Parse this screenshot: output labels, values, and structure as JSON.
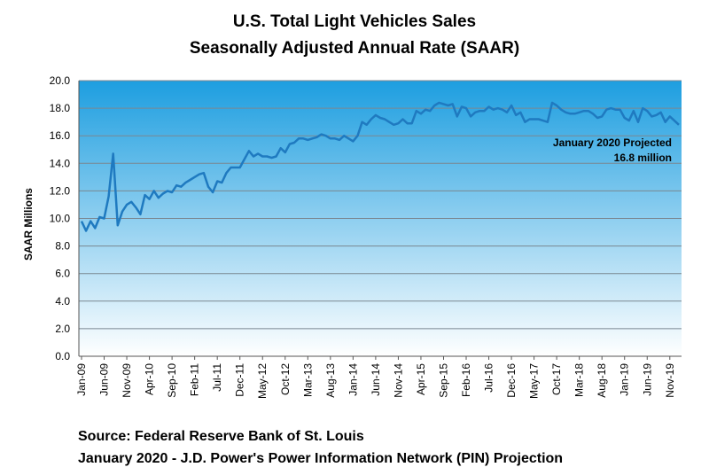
{
  "chart_data": {
    "type": "line",
    "title": "U.S. Total Light Vehicles Sales",
    "subtitle": "Seasonally Adjusted Annual Rate (SAAR)",
    "ylabel": "SAAR Millions",
    "xlabel": "",
    "ylim": [
      0,
      20
    ],
    "yticks": [
      "0.0",
      "2.0",
      "4.0",
      "6.0",
      "8.0",
      "10.0",
      "12.0",
      "14.0",
      "16.0",
      "18.0",
      "20.0"
    ],
    "xtick_labels": [
      "Jan-09",
      "Jun-09",
      "Nov-09",
      "Apr-10",
      "Sep-10",
      "Feb-11",
      "Jul-11",
      "Dec-11",
      "May-12",
      "Oct-12",
      "Mar-13",
      "Aug-13",
      "Jan-14",
      "Jun-14",
      "Nov-14",
      "Apr-15",
      "Sep-15",
      "Feb-16",
      "Jul-16",
      "Dec-16",
      "May-17",
      "Oct-17",
      "Mar-18",
      "Aug-18",
      "Jan-19",
      "Jun-19",
      "Nov-19"
    ],
    "x_start": "Jan-09",
    "x_end": "Jan-20",
    "grid": true,
    "line_color": "#1f7ac0",
    "background_top_color": "#1d9ee0",
    "background_bottom_color": "#ffffff",
    "series": [
      {
        "values": [
          9.8,
          9.1,
          9.8,
          9.3,
          10.1,
          10.0,
          11.6,
          14.7,
          9.5,
          10.5,
          11.0,
          11.2,
          10.8,
          10.3,
          11.7,
          11.4,
          12.0,
          11.5,
          11.8,
          12.0,
          11.9,
          12.4,
          12.3,
          12.6,
          12.8,
          13.0,
          13.2,
          13.3,
          12.3,
          11.9,
          12.7,
          12.6,
          13.3,
          13.7,
          13.7,
          13.7,
          14.3,
          14.9,
          14.5,
          14.7,
          14.5,
          14.5,
          14.4,
          14.5,
          15.1,
          14.8,
          15.4,
          15.5,
          15.8,
          15.8,
          15.7,
          15.8,
          15.9,
          16.1,
          16.0,
          15.8,
          15.8,
          15.7,
          16.0,
          15.8,
          15.6,
          16.0,
          17.0,
          16.8,
          17.2,
          17.5,
          17.3,
          17.2,
          17.0,
          16.8,
          16.9,
          17.2,
          16.9,
          16.9,
          17.8,
          17.6,
          17.9,
          17.8,
          18.2,
          18.4,
          18.3,
          18.2,
          18.3,
          17.4,
          18.1,
          18.0,
          17.4,
          17.7,
          17.8,
          17.8,
          18.1,
          17.9,
          18.0,
          17.9,
          17.7,
          18.2,
          17.5,
          17.7,
          17.0,
          17.2,
          17.2,
          17.2,
          17.1,
          17.0,
          18.4,
          18.2,
          17.9,
          17.7,
          17.6,
          17.6,
          17.7,
          17.8,
          17.8,
          17.6,
          17.3,
          17.4,
          17.9,
          18.0,
          17.9,
          17.9,
          17.3,
          17.1,
          17.8,
          17.0,
          18.0,
          17.8,
          17.4,
          17.5,
          17.7,
          17.0,
          17.4,
          17.1,
          16.8
        ]
      }
    ],
    "annotation": {
      "line1": "January 2020  Projected",
      "line2": "16.8 million"
    }
  },
  "source": {
    "line1": "Source: Federal Reserve Bank of St. Louis",
    "line2": "January 2020 - J.D. Power's Power Information Network (PIN) Projection"
  }
}
